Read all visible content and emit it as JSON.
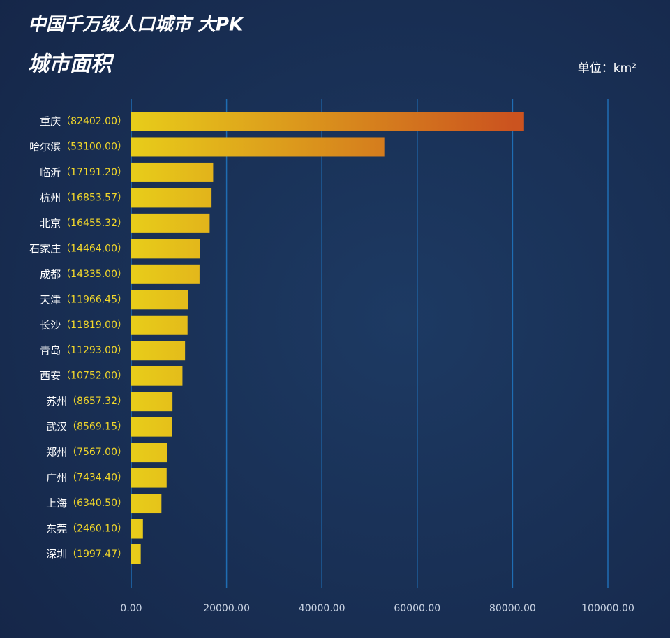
{
  "chart_data": {
    "type": "bar",
    "orientation": "horizontal",
    "title": "中国千万级人口城市  大PK",
    "subtitle": "城市面积",
    "unit": "单位：km²",
    "categories": [
      "重庆",
      "哈尔滨",
      "临沂",
      "杭州",
      "北京",
      "石家庄",
      "成都",
      "天津",
      "长沙",
      "青岛",
      "西安",
      "苏州",
      "武汉",
      "郑州",
      "广州",
      "上海",
      "东莞",
      "深圳"
    ],
    "values": [
      82402.0,
      53100.0,
      17191.2,
      16853.57,
      16455.32,
      14464.0,
      14335.0,
      11966.45,
      11819.0,
      11293.0,
      10752.0,
      8657.32,
      8569.15,
      7567.0,
      7434.4,
      6340.5,
      2460.1,
      1997.47
    ],
    "value_labels": [
      "（82402.00）",
      "（53100.00）",
      "（17191.20）",
      "（16853.57）",
      "（16455.32）",
      "（14464.00）",
      "（14335.00）",
      "（11966.45）",
      "（11819.00）",
      "（11293.00）",
      "（10752.00）",
      "（8657.32）",
      "（8569.15）",
      "（7567.00）",
      "（7434.40）",
      "（6340.50）",
      "（2460.10）",
      "（1997.47）"
    ],
    "gradient": [
      "#e8cd1a",
      "#cb531f"
    ],
    "xlim": [
      0,
      100000
    ],
    "xticks": [
      {
        "value": 0,
        "label": "0.00"
      },
      {
        "value": 20000,
        "label": "20000.00"
      },
      {
        "value": 40000,
        "label": "40000.00"
      },
      {
        "value": 60000,
        "label": "60000.00"
      },
      {
        "value": 80000,
        "label": "80000.00"
      },
      {
        "value": 100000,
        "label": "100000.00"
      }
    ],
    "grid": true
  }
}
